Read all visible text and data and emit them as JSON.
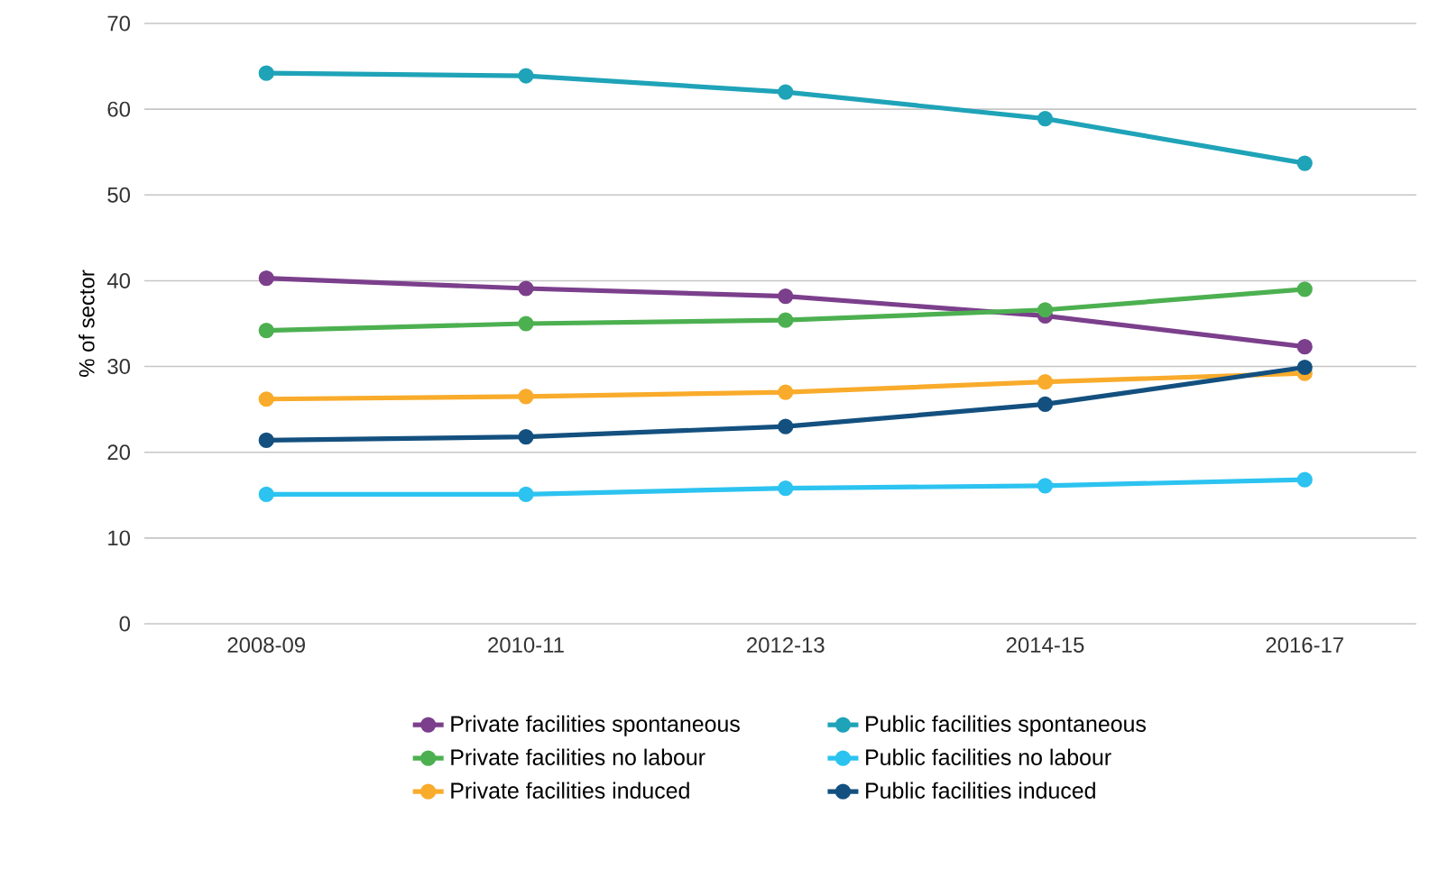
{
  "chart_data": {
    "type": "line",
    "ylabel": "% of sector",
    "categories": [
      "2008-09",
      "2010-11",
      "2012-13",
      "2014-15",
      "2016-17"
    ],
    "ylim": [
      0,
      70
    ],
    "yticks": [
      0,
      10,
      20,
      30,
      40,
      50,
      60,
      70
    ],
    "grid": "y",
    "legend": "bottom",
    "marker": "circle",
    "line_style": "solid",
    "series": [
      {
        "name": "Private facilities spontaneous",
        "color": "#7b3f8c",
        "values": [
          40.3,
          39.1,
          38.2,
          35.9,
          32.3
        ]
      },
      {
        "name": "Public facilities spontaneous",
        "color": "#1fa3b8",
        "values": [
          64.2,
          63.9,
          62.0,
          58.9,
          53.7
        ]
      },
      {
        "name": "Private facilities no labour",
        "color": "#4cb050",
        "values": [
          34.2,
          35.0,
          35.4,
          36.6,
          39.0
        ]
      },
      {
        "name": "Public facilities no labour",
        "color": "#2cc3f0",
        "values": [
          15.1,
          15.1,
          15.8,
          16.1,
          16.8
        ]
      },
      {
        "name": "Private facilities induced",
        "color": "#f9ab2b",
        "values": [
          26.2,
          26.5,
          27.0,
          28.2,
          29.2
        ]
      },
      {
        "name": "Public facilities induced",
        "color": "#13507f",
        "values": [
          21.4,
          21.8,
          23.0,
          25.6,
          29.9
        ]
      }
    ]
  }
}
